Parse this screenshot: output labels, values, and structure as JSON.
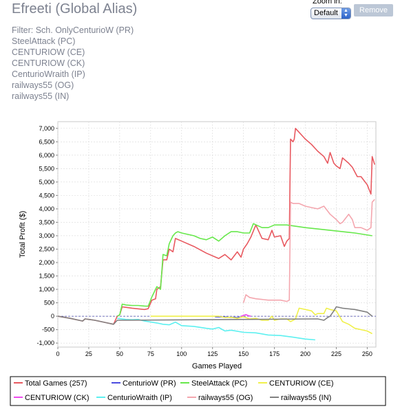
{
  "title": "Efreeti (Global Alias)",
  "subtitle_lines": [
    "Filter: Sch. OnlyCenturioW (PR)",
    "SteelAttack (PC)",
    "CENTURIOW (CE)",
    "CENTURIOW (CK)",
    "CenturioWraith (IP)",
    "railways55 (OG)",
    "railways55 (IN)"
  ],
  "zoom": {
    "label": "Zoom in:",
    "value": "Default"
  },
  "remove_button": "Remove",
  "chart_data": {
    "type": "line",
    "xlabel": "Games Played",
    "ylabel": "Total Profit ($)",
    "xlim": [
      0,
      257
    ],
    "ylim": [
      -1150,
      7250
    ],
    "xticks": [
      0,
      25,
      50,
      75,
      100,
      125,
      150,
      175,
      200,
      225,
      250
    ],
    "yticks": [
      -1000,
      -500,
      0,
      500,
      1000,
      1500,
      2000,
      2500,
      3000,
      3500,
      4000,
      4500,
      5000,
      5500,
      6000,
      6500,
      7000
    ],
    "ytick_labels": [
      "-1,000",
      "-500",
      "0",
      "500",
      "1,000",
      "1,500",
      "2,000",
      "2,500",
      "3,000",
      "3,500",
      "4,000",
      "4,500",
      "5,000",
      "5,500",
      "6,000",
      "6,500",
      "7,000"
    ],
    "grid": true,
    "legend_position": "bottom",
    "series": [
      {
        "name": "Total Games (257)",
        "color": "#e8585f",
        "points": [
          [
            0,
            0
          ],
          [
            10,
            -80
          ],
          [
            20,
            -180
          ],
          [
            22,
            -100
          ],
          [
            30,
            -150
          ],
          [
            40,
            -250
          ],
          [
            45,
            -300
          ],
          [
            48,
            0
          ],
          [
            50,
            50
          ],
          [
            52,
            350
          ],
          [
            60,
            300
          ],
          [
            70,
            250
          ],
          [
            73,
            280
          ],
          [
            76,
            600
          ],
          [
            79,
            650
          ],
          [
            80,
            1000
          ],
          [
            83,
            1100
          ],
          [
            85,
            2100
          ],
          [
            88,
            2100
          ],
          [
            90,
            2500
          ],
          [
            93,
            2400
          ],
          [
            95,
            2900
          ],
          [
            100,
            2800
          ],
          [
            110,
            2600
          ],
          [
            120,
            2350
          ],
          [
            130,
            2150
          ],
          [
            135,
            2300
          ],
          [
            140,
            2100
          ],
          [
            145,
            2400
          ],
          [
            148,
            2200
          ],
          [
            150,
            2500
          ],
          [
            153,
            2700
          ],
          [
            156,
            2950
          ],
          [
            160,
            3400
          ],
          [
            165,
            2900
          ],
          [
            170,
            2850
          ],
          [
            173,
            3200
          ],
          [
            175,
            2950
          ],
          [
            180,
            3000
          ],
          [
            183,
            2600
          ],
          [
            185,
            2800
          ],
          [
            187,
            2900
          ],
          [
            188,
            6600
          ],
          [
            190,
            6500
          ],
          [
            191,
            6600
          ],
          [
            192,
            7000
          ],
          [
            195,
            6850
          ],
          [
            198,
            6700
          ],
          [
            200,
            6600
          ],
          [
            205,
            6400
          ],
          [
            210,
            6150
          ],
          [
            215,
            5950
          ],
          [
            218,
            5700
          ],
          [
            220,
            6100
          ],
          [
            223,
            5700
          ],
          [
            225,
            5600
          ],
          [
            228,
            5500
          ],
          [
            230,
            5900
          ],
          [
            235,
            5700
          ],
          [
            238,
            5550
          ],
          [
            242,
            5200
          ],
          [
            245,
            5200
          ],
          [
            250,
            4900
          ],
          [
            253,
            4550
          ],
          [
            254,
            5950
          ],
          [
            256,
            5650
          ]
        ]
      },
      {
        "name": "CenturioW (PR)",
        "color": "#4a4ae0",
        "points": [
          [
            127,
            -20
          ],
          [
            135,
            -30
          ],
          [
            140,
            -50
          ],
          [
            141,
            -40
          ],
          [
            143,
            -40
          ],
          [
            145,
            -60
          ],
          [
            147,
            -20
          ]
        ]
      },
      {
        "name": "SteelAttack (PC)",
        "color": "#66e84a",
        "points": [
          [
            48,
            0
          ],
          [
            50,
            50
          ],
          [
            52,
            450
          ],
          [
            55,
            420
          ],
          [
            60,
            400
          ],
          [
            65,
            400
          ],
          [
            70,
            380
          ],
          [
            73,
            370
          ],
          [
            76,
            720
          ],
          [
            80,
            1100
          ],
          [
            83,
            1000
          ],
          [
            85,
            2300
          ],
          [
            88,
            2250
          ],
          [
            90,
            2700
          ],
          [
            93,
            3000
          ],
          [
            95,
            3100
          ],
          [
            97,
            3150
          ],
          [
            100,
            3100
          ],
          [
            110,
            3000
          ],
          [
            115,
            2900
          ],
          [
            120,
            2850
          ],
          [
            125,
            2950
          ],
          [
            130,
            2800
          ],
          [
            135,
            3000
          ],
          [
            140,
            3150
          ],
          [
            145,
            3150
          ],
          [
            150,
            3100
          ],
          [
            155,
            3100
          ],
          [
            158,
            3450
          ],
          [
            165,
            3300
          ],
          [
            170,
            3300
          ],
          [
            175,
            3400
          ],
          [
            185,
            3400
          ],
          [
            200,
            3300
          ],
          [
            220,
            3200
          ],
          [
            240,
            3100
          ],
          [
            254,
            3000
          ]
        ]
      },
      {
        "name": "CENTURIOW (CE)",
        "color": "#f0f04a",
        "points": [
          [
            75,
            0
          ],
          [
            100,
            0
          ],
          [
            125,
            0
          ],
          [
            130,
            0
          ],
          [
            135,
            -50
          ],
          [
            140,
            -40
          ],
          [
            145,
            -80
          ],
          [
            150,
            -20
          ],
          [
            155,
            -100
          ],
          [
            160,
            -80
          ],
          [
            165,
            -150
          ],
          [
            170,
            -150
          ],
          [
            173,
            0
          ],
          [
            175,
            -150
          ],
          [
            180,
            -100
          ],
          [
            185,
            -100
          ],
          [
            188,
            -200
          ],
          [
            190,
            -150
          ],
          [
            192,
            -100
          ],
          [
            195,
            300
          ],
          [
            200,
            250
          ],
          [
            205,
            200
          ],
          [
            208,
            50
          ],
          [
            210,
            100
          ],
          [
            215,
            100
          ],
          [
            217,
            300
          ],
          [
            220,
            250
          ],
          [
            225,
            200
          ],
          [
            230,
            -200
          ],
          [
            235,
            -300
          ],
          [
            240,
            -450
          ],
          [
            245,
            -500
          ],
          [
            250,
            -550
          ],
          [
            254,
            -650
          ]
        ]
      },
      {
        "name": "CENTURIOW (CK)",
        "color": "#ee4aee",
        "points": [
          [
            148,
            0
          ],
          [
            150,
            30
          ],
          [
            152,
            60
          ],
          [
            154,
            20
          ],
          [
            156,
            0
          ]
        ]
      },
      {
        "name": "CenturioWraith (IP)",
        "color": "#5cf0f0",
        "points": [
          [
            48,
            -80
          ],
          [
            55,
            -120
          ],
          [
            60,
            -130
          ],
          [
            65,
            -120
          ],
          [
            70,
            -180
          ],
          [
            80,
            -250
          ],
          [
            85,
            -300
          ],
          [
            90,
            -320
          ],
          [
            95,
            -220
          ],
          [
            100,
            -350
          ],
          [
            110,
            -380
          ],
          [
            120,
            -450
          ],
          [
            125,
            -480
          ],
          [
            130,
            -420
          ],
          [
            135,
            -550
          ],
          [
            140,
            -520
          ],
          [
            150,
            -600
          ],
          [
            160,
            -620
          ],
          [
            170,
            -700
          ],
          [
            180,
            -720
          ],
          [
            190,
            -780
          ],
          [
            200,
            -850
          ],
          [
            208,
            -880
          ]
        ]
      },
      {
        "name": "railways55 (OG)",
        "color": "#f4a6ae",
        "points": [
          [
            150,
            500
          ],
          [
            152,
            800
          ],
          [
            155,
            700
          ],
          [
            160,
            650
          ],
          [
            170,
            600
          ],
          [
            180,
            600
          ],
          [
            185,
            550
          ],
          [
            187,
            600
          ],
          [
            188,
            4250
          ],
          [
            190,
            4200
          ],
          [
            195,
            4200
          ],
          [
            200,
            4100
          ],
          [
            205,
            4050
          ],
          [
            210,
            4000
          ],
          [
            215,
            4100
          ],
          [
            220,
            3800
          ],
          [
            225,
            3600
          ],
          [
            228,
            3450
          ],
          [
            230,
            3500
          ],
          [
            235,
            3800
          ],
          [
            238,
            3600
          ],
          [
            240,
            3300
          ],
          [
            245,
            3300
          ],
          [
            250,
            3200
          ],
          [
            253,
            3300
          ],
          [
            254,
            4250
          ],
          [
            256,
            4350
          ]
        ]
      },
      {
        "name": "railways55 (IN)",
        "color": "#808080",
        "points": [
          [
            0,
            0
          ],
          [
            10,
            -80
          ],
          [
            20,
            -180
          ],
          [
            22,
            -100
          ],
          [
            30,
            -150
          ],
          [
            40,
            -250
          ],
          [
            45,
            -300
          ],
          [
            48,
            -150
          ],
          [
            210,
            -100
          ],
          [
            215,
            -150
          ],
          [
            218,
            -50
          ],
          [
            220,
            0
          ],
          [
            223,
            200
          ],
          [
            225,
            350
          ],
          [
            230,
            300
          ],
          [
            240,
            250
          ],
          [
            250,
            150
          ],
          [
            254,
            0
          ]
        ]
      }
    ]
  }
}
